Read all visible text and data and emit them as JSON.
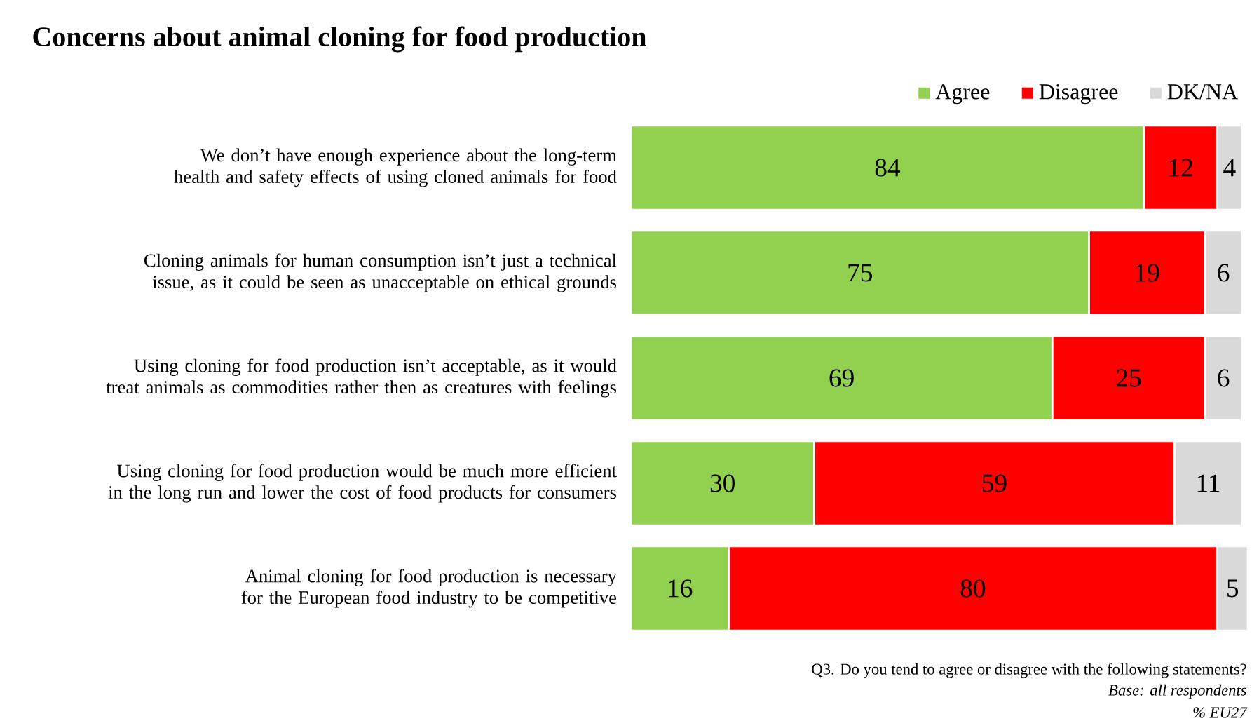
{
  "chart_data": {
    "type": "bar",
    "orientation": "horizontal",
    "stacked": true,
    "title": "Concerns about animal cloning for food production",
    "categories": [
      "We don’t have enough experience about the long-term health and safety effects of using cloned animals for food",
      "Cloning animals for human consumption isn’t just a technical issue, as it could be seen as unacceptable on ethical grounds",
      "Using cloning for food production isn’t acceptable, as it would treat animals as commodities rather then as creatures with feelings",
      "Using cloning for food production would be much more efficient in the long run and lower the cost of food products for consumers",
      "Animal cloning for food production is necessary for the European food industry to be competitive"
    ],
    "series": [
      {
        "name": "Agree",
        "color": "#92d050",
        "values": [
          84,
          75,
          69,
          30,
          16
        ]
      },
      {
        "name": "Disagree",
        "color": "#ff0000",
        "values": [
          12,
          19,
          25,
          59,
          80
        ]
      },
      {
        "name": "DK/NA",
        "color": "#d9d9d9",
        "values": [
          4,
          6,
          6,
          11,
          5
        ]
      }
    ],
    "tick_labels": "y",
    "data_labels": true,
    "legend": "top right",
    "annotations": [
      "Q3. Do you tend to agree or disagree with the following statements?",
      "Base: all respondents",
      "% EU27"
    ]
  }
}
